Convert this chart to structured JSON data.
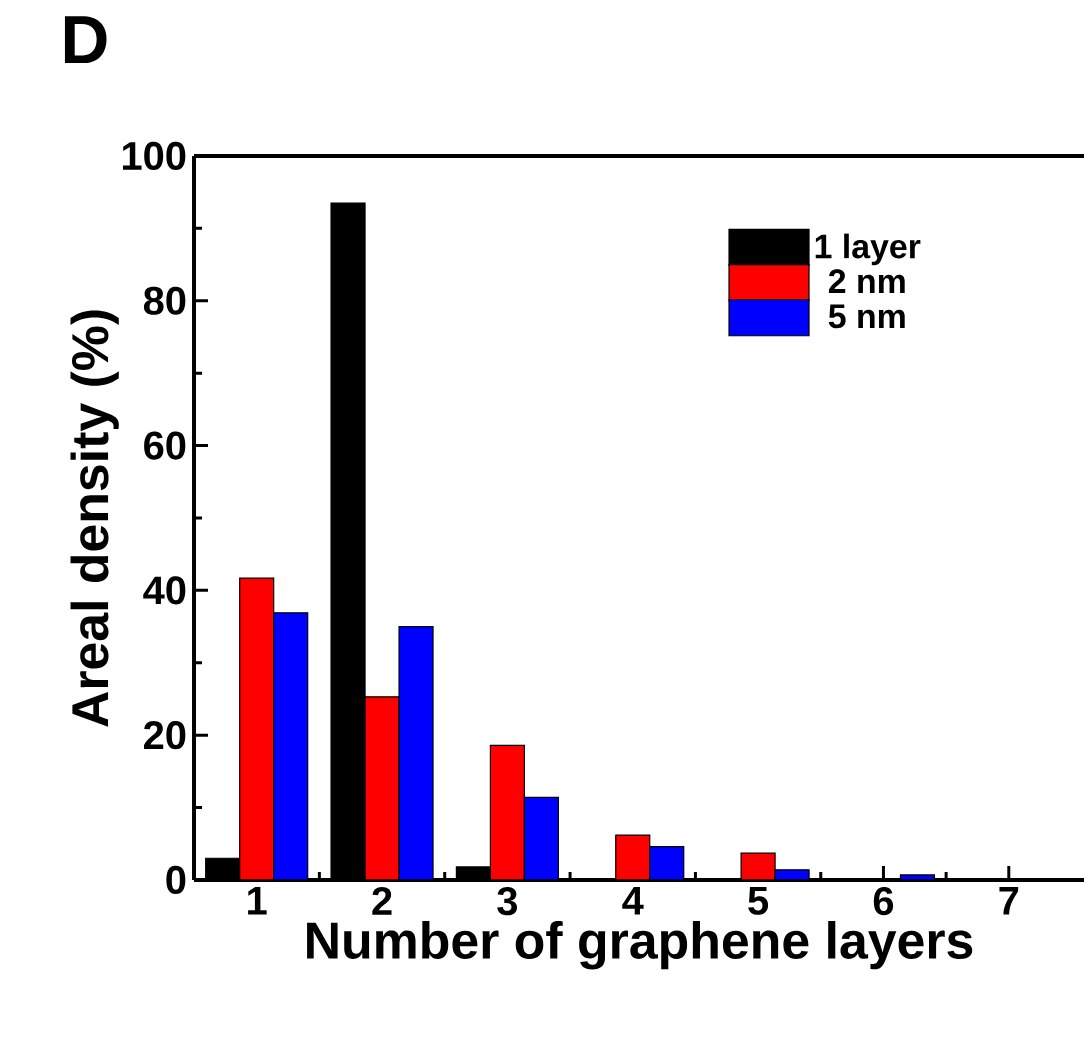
{
  "chart_data": {
    "type": "bar",
    "title": "D",
    "xlabel": "Number of graphene layers",
    "ylabel": "Areal density (%)",
    "categories": [
      "1",
      "2",
      "3",
      "4",
      "5",
      "6",
      "7"
    ],
    "series": [
      {
        "name": "1 layer",
        "color": "#000000",
        "values": [
          3,
          93.5,
          1.8,
          null,
          null,
          null,
          null
        ]
      },
      {
        "name": "2 nm",
        "color": "#ff0000",
        "values": [
          41.7,
          25.3,
          18.6,
          6.2,
          3.7,
          null,
          null
        ]
      },
      {
        "name": "5 nm",
        "color": "#0000ff",
        "values": [
          36.9,
          35.0,
          11.4,
          4.6,
          1.4,
          0.7,
          null
        ]
      }
    ],
    "ylim": [
      0,
      100
    ],
    "yticks": [
      0,
      20,
      40,
      60,
      80,
      100
    ],
    "legend": "top right"
  }
}
